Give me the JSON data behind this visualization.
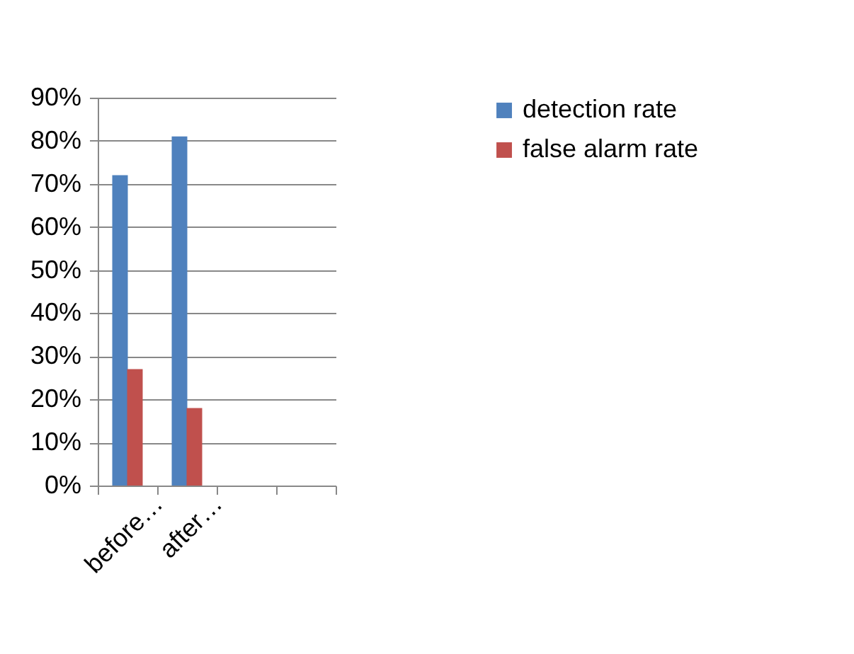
{
  "chart_data": {
    "type": "bar",
    "categories": [
      "before…",
      "after…",
      null,
      null
    ],
    "series": [
      {
        "name": "detection rate",
        "color": "#4f81bd",
        "values": [
          72,
          81,
          null,
          null
        ]
      },
      {
        "name": "false alarm rate",
        "color": "#c0504d",
        "values": [
          27,
          18,
          null,
          null
        ]
      }
    ],
    "ylim": [
      0,
      90
    ],
    "yticks": [
      {
        "value": 0,
        "label": "0%"
      },
      {
        "value": 10,
        "label": "10%"
      },
      {
        "value": 20,
        "label": "20%"
      },
      {
        "value": 30,
        "label": "30%"
      },
      {
        "value": 40,
        "label": "40%"
      },
      {
        "value": 50,
        "label": "50%"
      },
      {
        "value": 60,
        "label": "60%"
      },
      {
        "value": 70,
        "label": "70%"
      },
      {
        "value": 80,
        "label": "80%"
      },
      {
        "value": 90,
        "label": "90%"
      }
    ],
    "grid": "y",
    "legend": "right"
  }
}
